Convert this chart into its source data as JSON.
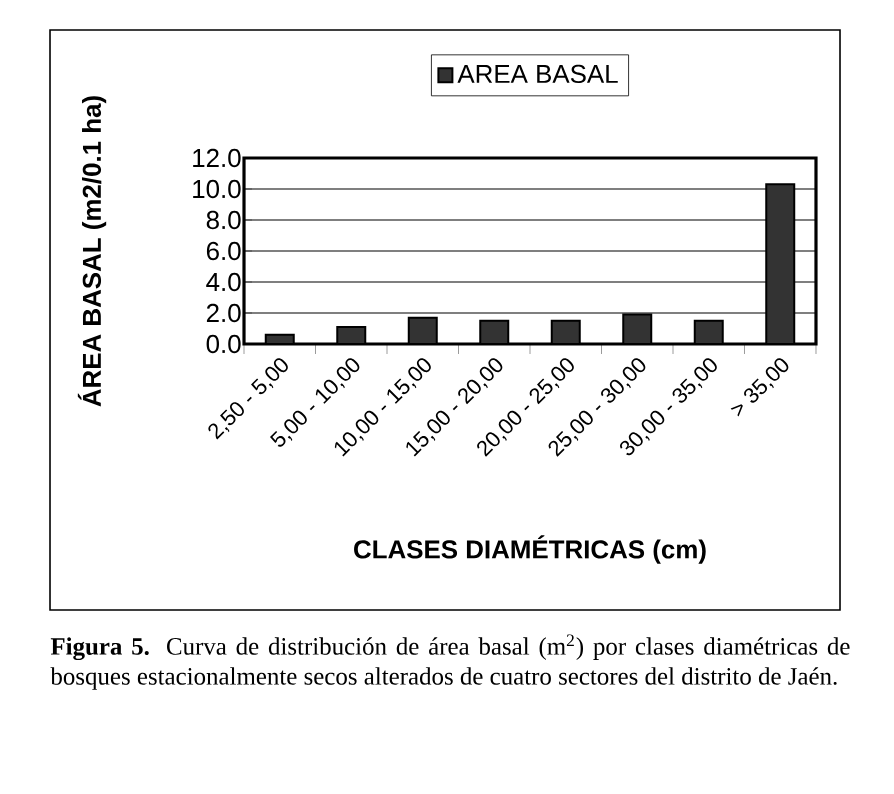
{
  "chart_data": {
    "type": "bar",
    "categories": [
      "2,50 - 5,00",
      "5,00 - 10,00",
      "10,00 - 15,00",
      "15,00 - 20,00",
      "20,00 - 25,00",
      "25,00 - 30,00",
      "30,00 - 35,00",
      "> 35,00"
    ],
    "series": [
      {
        "name": "AREA BASAL",
        "color": "#333333",
        "values": [
          0.6,
          1.1,
          1.7,
          1.5,
          1.5,
          1.9,
          1.5,
          10.3
        ]
      }
    ],
    "xlabel": "CLASES DIAMÉTRICAS (cm)",
    "ylabel": "ÁREA BASAL (m2/0.1 ha)",
    "ylim": [
      0,
      12
    ],
    "yticks": [
      {
        "value": 0,
        "label": "0.0"
      },
      {
        "value": 2,
        "label": "2.0"
      },
      {
        "value": 4,
        "label": "4.0"
      },
      {
        "value": 6,
        "label": "6.0"
      },
      {
        "value": 8,
        "label": "8.0"
      },
      {
        "value": 10,
        "label": "10.0"
      },
      {
        "value": 12,
        "label": "12.0"
      }
    ],
    "grid": "y",
    "legend": "top",
    "annotations": [
      "**Figura 5.** Curva de distribución de área basal (m$^{2}$) por clases diamétricas de bosques estacionalmente secos alterados de cuatro sectores del distrito de Jaén."
    ]
  }
}
